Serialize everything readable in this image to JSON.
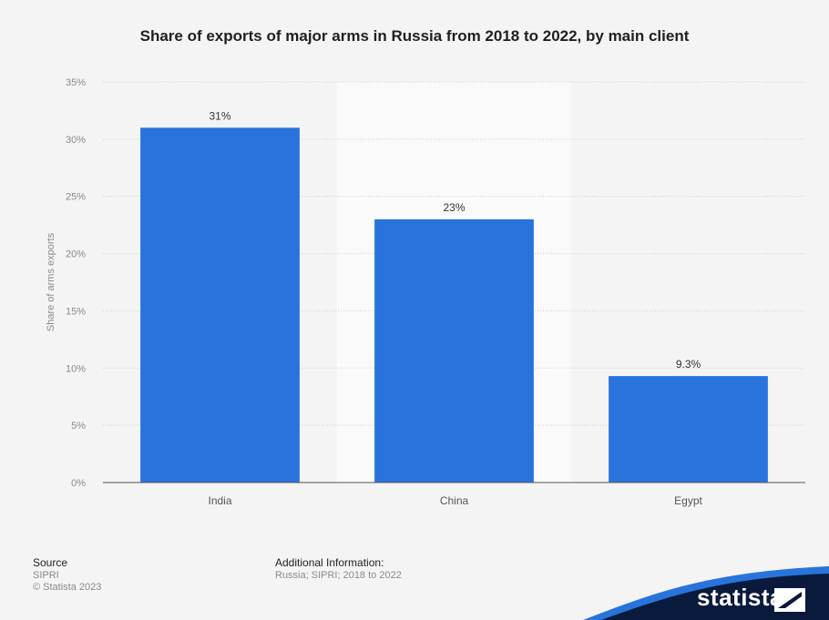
{
  "title": "Share of exports of major arms in Russia from 2018 to 2022, by main client",
  "chart_data": {
    "type": "bar",
    "title": "Share of exports of major arms in Russia from 2018 to 2022, by main client",
    "categories": [
      "India",
      "China",
      "Egypt"
    ],
    "values": [
      31,
      23,
      9.3
    ],
    "data_labels": [
      "31%",
      "23%",
      "9.3%"
    ],
    "xlabel": "",
    "ylabel": "Share of arms exports",
    "ylim": [
      0,
      35
    ],
    "yticks": [
      0,
      5,
      10,
      15,
      20,
      25,
      30,
      35
    ],
    "ytick_labels": [
      "0%",
      "5%",
      "10%",
      "15%",
      "20%",
      "25%",
      "30%",
      "35%"
    ],
    "grid": true,
    "bar_color": "#2874dc"
  },
  "footer": {
    "source_heading": "Source",
    "source_lines": [
      "SIPRI",
      "© Statista 2023"
    ],
    "info_heading": "Additional Information:",
    "info_lines": [
      "Russia; SIPRI; 2018 to 2022"
    ]
  },
  "brand": {
    "name": "statista",
    "icon": "statista-logo-icon",
    "wave_color": "#2874dc",
    "dark_color": "#0a1a3c"
  }
}
